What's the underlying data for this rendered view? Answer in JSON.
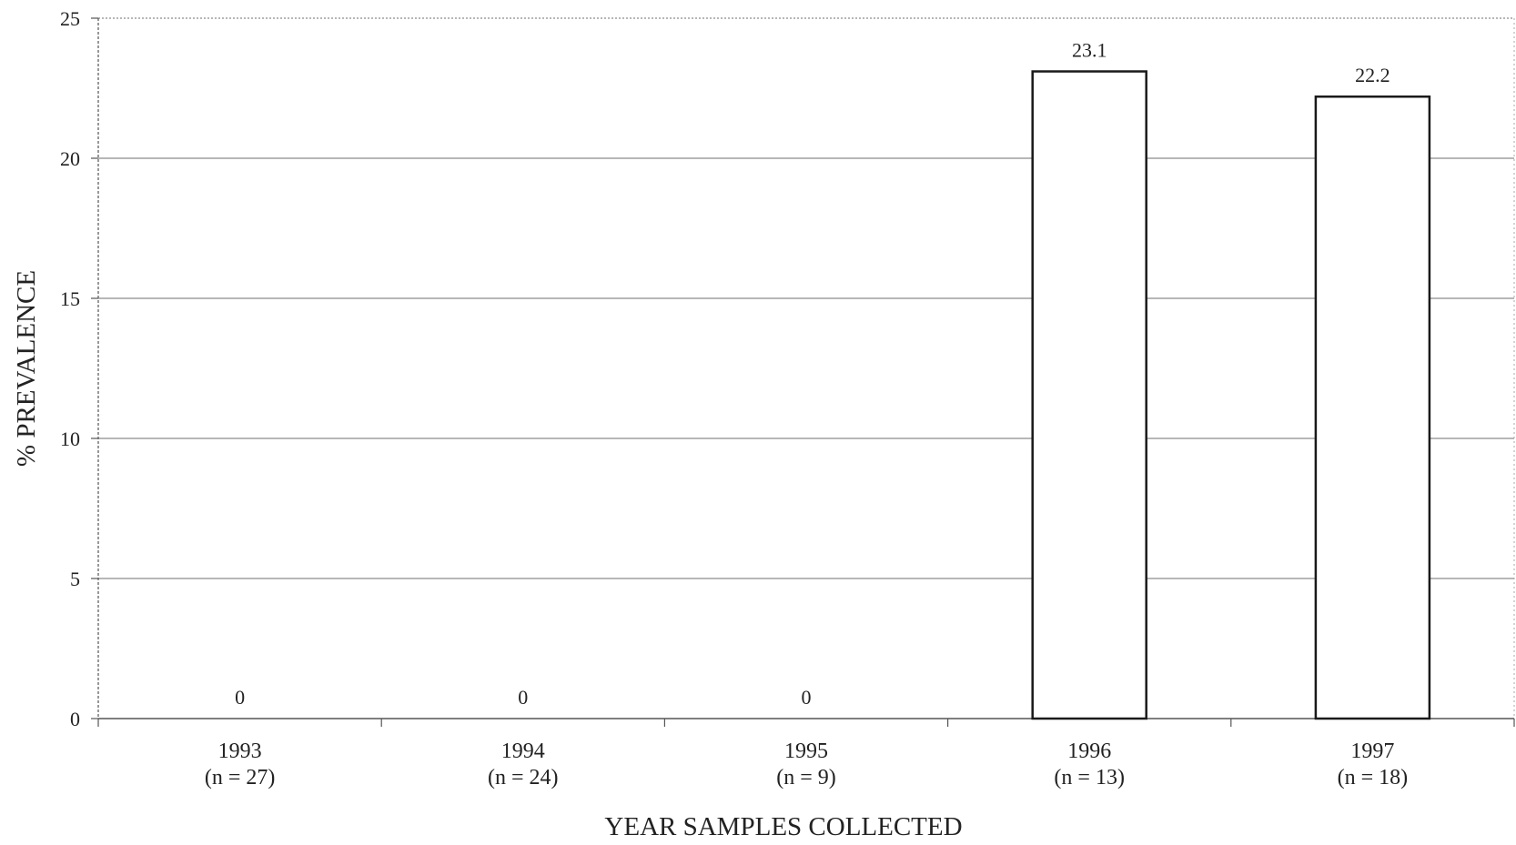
{
  "chart_data": {
    "type": "bar",
    "categories": [
      "1993",
      "1994",
      "1995",
      "1996",
      "1997"
    ],
    "category_sublabels": [
      "(n = 27)",
      "(n = 24)",
      "(n = 9)",
      "(n = 13)",
      "(n = 18)"
    ],
    "values": [
      0,
      0,
      0,
      23.1,
      22.2
    ],
    "data_labels": [
      "0",
      "0",
      "0",
      "23.1",
      "22.2"
    ],
    "xlabel": "YEAR SAMPLES COLLECTED",
    "ylabel": "% PREVALENCE",
    "ylim": [
      0,
      25
    ],
    "yticks": [
      0,
      5,
      10,
      15,
      20,
      25
    ],
    "grid": true,
    "legend": "none",
    "colors": {
      "bar_fill": "#ffffff",
      "bar_stroke": "#1a1a1a",
      "grid": "#8c8c8c",
      "axis": "#555555"
    }
  }
}
